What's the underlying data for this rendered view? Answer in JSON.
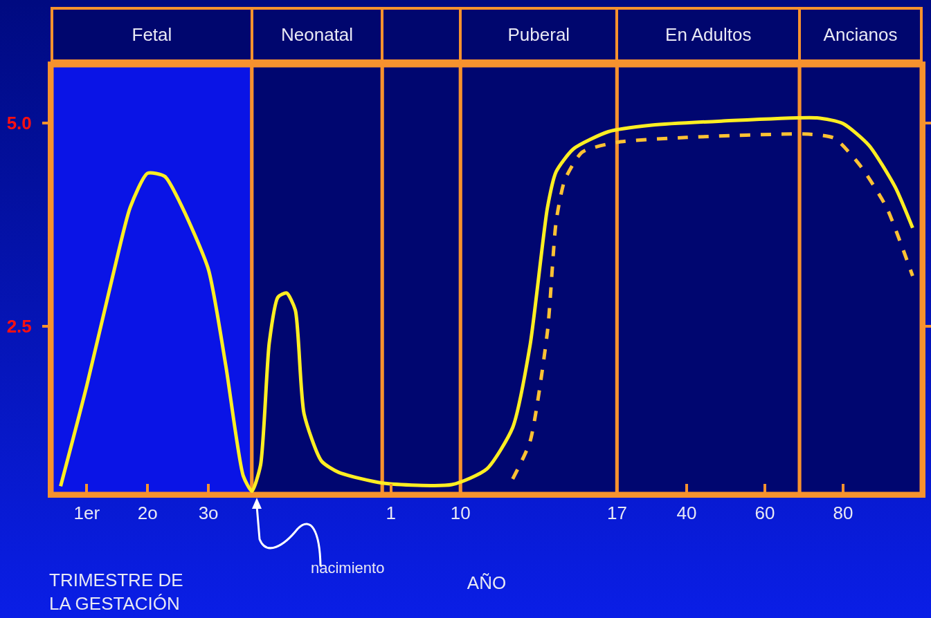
{
  "chart_data": {
    "type": "line",
    "xlabel": "AÑO",
    "annotations": [
      "Fetal",
      "Neonatal",
      "Puberal",
      "En Adultos",
      "Ancianos",
      "TRIMESTRE DE LA GESTACIÓN",
      "nacimiento"
    ],
    "categories": [
      null,
      null,
      null,
      null,
      "1er",
      null,
      null,
      null,
      null,
      null,
      null,
      "2o",
      null,
      null,
      null,
      null,
      null,
      null,
      "3o",
      null,
      null,
      null,
      null,
      null,
      null,
      null,
      null,
      null,
      null,
      null,
      null,
      null,
      null,
      null,
      null,
      null,
      null,
      null,
      null,
      "1",
      null,
      null,
      null,
      null,
      null,
      null,
      null,
      "10",
      null,
      null,
      null,
      null,
      null,
      null,
      null,
      null,
      null,
      null,
      null,
      null,
      null,
      null,
      null,
      null,
      null,
      "17",
      null,
      null,
      null,
      null,
      null,
      null,
      null,
      "40",
      null,
      null,
      null,
      null,
      null,
      null,
      null,
      null,
      "60",
      null,
      null,
      null,
      null,
      null,
      null,
      null,
      null,
      "80",
      null,
      null,
      null,
      null,
      null,
      null,
      null,
      null,
      null
    ],
    "ylim": [
      0.45,
      5.7
    ],
    "yticks": [
      2.5,
      {
        "value": 5,
        "label": "5.0"
      }
    ],
    "grid": false,
    "marker": "none",
    "series": [
      {
        "color": "#ffee22",
        "line_style": "solid",
        "values": [
          null,
          0.54,
          null,
          null,
          1.77,
          null,
          null,
          3.12,
          null,
          3.96,
          null,
          4.38,
          null,
          4.34,
          null,
          3.96,
          null,
          null,
          3.2,
          null,
          2.02,
          null,
          0.67,
          0.48,
          0.8,
          2.3,
          2.86,
          2.91,
          2.7,
          1.43,
          null,
          0.85,
          null,
          0.71,
          null,
          null,
          null,
          null,
          0.58,
          null,
          null,
          null,
          null,
          null,
          null,
          null,
          0.56,
          null,
          null,
          null,
          0.75,
          null,
          null,
          1.26,
          null,
          2.27,
          null,
          3.96,
          4.4,
          null,
          4.68,
          null,
          null,
          null,
          4.89,
          null,
          null,
          null,
          null,
          4.97,
          null,
          null,
          null,
          null,
          null,
          null,
          null,
          5.02,
          null,
          null,
          null,
          null,
          null,
          null,
          null,
          null,
          null,
          null,
          5.06,
          null,
          null,
          4.99,
          null,
          null,
          4.72,
          null,
          null,
          4.21,
          null,
          3.71,
          null
        ]
      },
      {
        "color": "#ffc233",
        "line_style": "dashed",
        "values": [
          null,
          null,
          null,
          null,
          null,
          null,
          null,
          null,
          null,
          null,
          null,
          null,
          null,
          null,
          null,
          null,
          null,
          null,
          null,
          null,
          null,
          null,
          null,
          null,
          null,
          null,
          null,
          null,
          null,
          null,
          null,
          null,
          null,
          null,
          null,
          null,
          null,
          null,
          null,
          null,
          null,
          null,
          null,
          null,
          null,
          null,
          null,
          null,
          null,
          null,
          null,
          null,
          null,
          0.63,
          null,
          1.09,
          null,
          2.44,
          3.79,
          4.3,
          null,
          4.64,
          null,
          null,
          null,
          4.76,
          null,
          null,
          null,
          null,
          null,
          null,
          null,
          4.82,
          null,
          null,
          null,
          null,
          null,
          null,
          null,
          null,
          null,
          null,
          null,
          null,
          null,
          4.86,
          null,
          null,
          4.81,
          null,
          null,
          4.47,
          null,
          null,
          3.96,
          null,
          null,
          3.12,
          null
        ]
      }
    ]
  }
}
